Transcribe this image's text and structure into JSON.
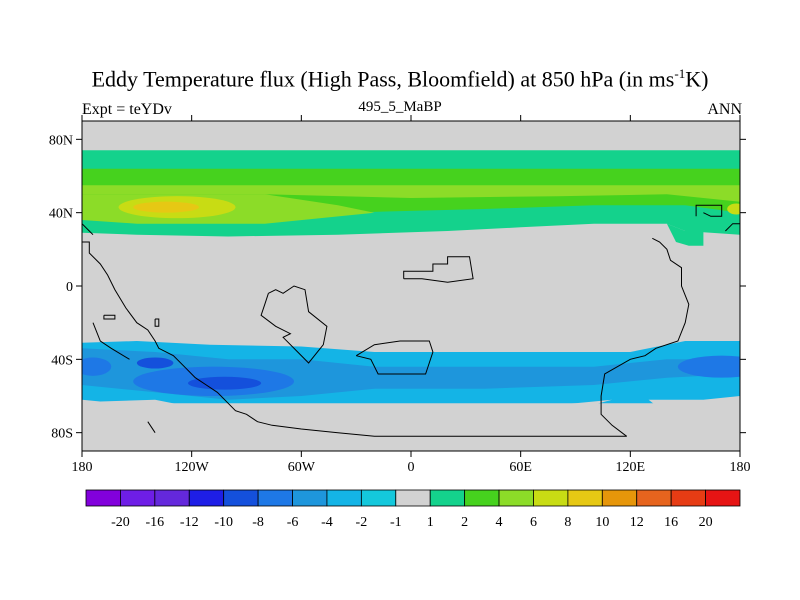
{
  "header": {
    "title_main": "Eddy Temperature flux (High Pass, Bloomfield) at 850 hPa (in ms",
    "title_sup": "-1",
    "title_end": "K)",
    "left": "Expt = teYDv",
    "center": "495_5_MaBP",
    "right": "ANN"
  },
  "chart_data": {
    "type": "heatmap",
    "title": "Eddy Temperature flux (High Pass, Bloomfield) at 850 hPa (in ms-1K)",
    "projection": "cylindrical equidistant",
    "xlim": [
      -180,
      180
    ],
    "ylim": [
      -90,
      90
    ],
    "x_ticks": [
      {
        "value": -180,
        "label": "180"
      },
      {
        "value": -120,
        "label": "120W"
      },
      {
        "value": -60,
        "label": "60W"
      },
      {
        "value": 0,
        "label": "0"
      },
      {
        "value": 60,
        "label": "60E"
      },
      {
        "value": 120,
        "label": "120E"
      },
      {
        "value": 180,
        "label": "180"
      }
    ],
    "y_ticks": [
      {
        "value": 80,
        "label": "80N"
      },
      {
        "value": 40,
        "label": "40N"
      },
      {
        "value": 0,
        "label": "0"
      },
      {
        "value": -40,
        "label": "40S"
      },
      {
        "value": -80,
        "label": "80S"
      }
    ],
    "colorbar": {
      "labels": [
        "-20",
        "-16",
        "-12",
        "-10",
        "-8",
        "-6",
        "-4",
        "-2",
        "-1",
        "1",
        "2",
        "4",
        "6",
        "8",
        "10",
        "12",
        "16",
        "20"
      ],
      "colors": [
        "#8200dc",
        "#6e1ee6",
        "#6428dc",
        "#1e1ee6",
        "#1450dc",
        "#1e78e6",
        "#1e96dc",
        "#14b4e6",
        "#14c8dc",
        "#d2d2d2",
        "#14d28c",
        "#46d21e",
        "#8cdc28",
        "#c8dc14",
        "#e6c814",
        "#e6960a",
        "#e6641e",
        "#e63c14",
        "#e61414"
      ]
    },
    "bands": [
      {
        "lat": [
          74,
          64
        ],
        "level": "1 to 2",
        "color": "#14d28c"
      },
      {
        "lat": [
          64,
          54
        ],
        "level": "2 to 4",
        "color": "#46d21e"
      },
      {
        "lat": [
          54,
          34
        ],
        "level": "4 to 6",
        "color": "#8cdc28"
      },
      {
        "lat": [
          46,
          40
        ],
        "level": "6 to 8",
        "color": "#c8dc14"
      },
      {
        "lat": [
          -30,
          -70
        ],
        "level": "-2 to -4",
        "color": "#14b4e6"
      },
      {
        "lat": [
          -46,
          -60
        ],
        "level": "-4 to -6",
        "color": "#1e96dc"
      },
      {
        "lat": [
          -50,
          -56
        ],
        "level": "-8 to -10",
        "color": "#1450dc"
      }
    ],
    "maxima": [
      {
        "lon": -135,
        "lat": 42,
        "level": "8 to 10"
      },
      {
        "lon": -105,
        "lat": -54,
        "level": "-8 to -10"
      }
    ]
  }
}
